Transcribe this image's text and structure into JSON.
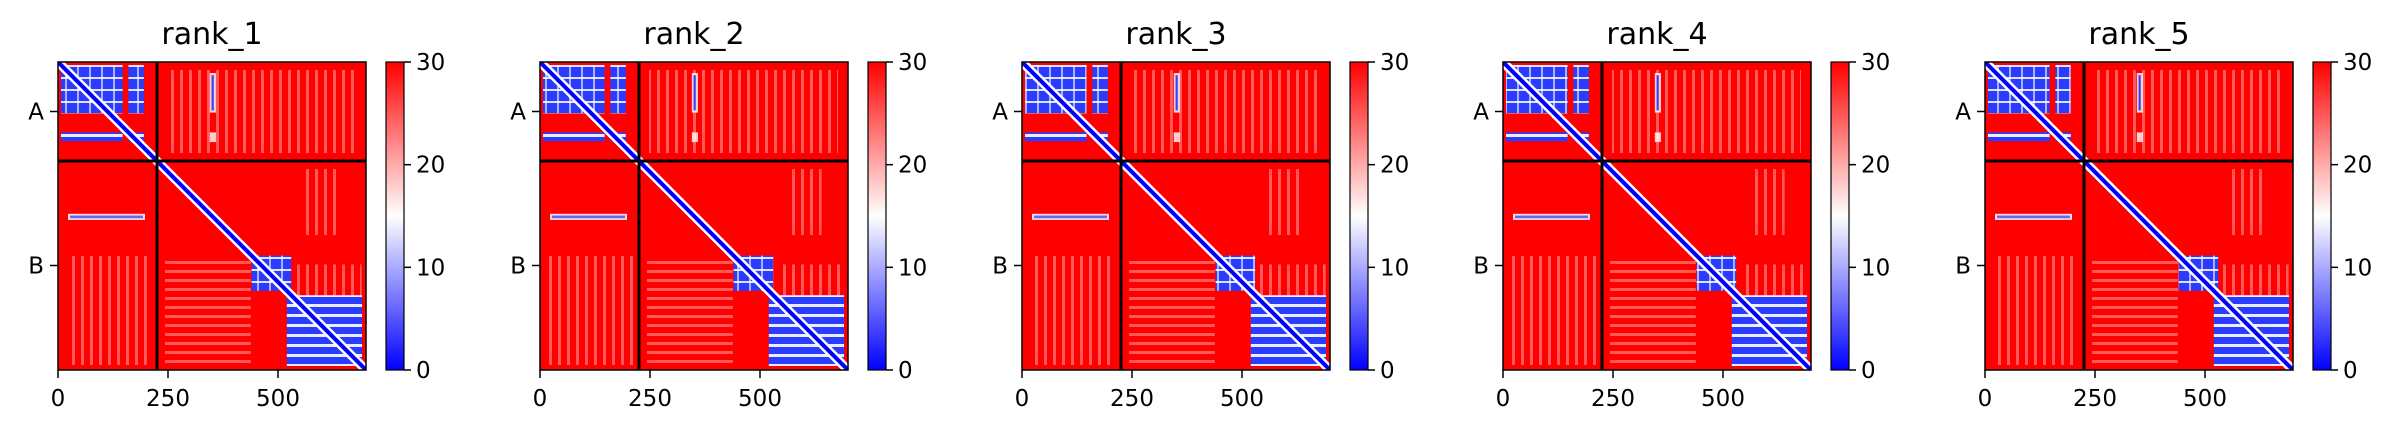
{
  "chart_data": [
    {
      "type": "heatmap",
      "title": "rank_1",
      "x_ticks": [
        "0",
        "250",
        "500"
      ],
      "y_ticks": [
        "A",
        "B"
      ],
      "x_range": [
        0,
        700
      ],
      "boundary": 225,
      "colorbar_ticks": [
        "0",
        "10",
        "20",
        "30"
      ],
      "colorbar_range": [
        0,
        30
      ],
      "colormap": [
        "#0000ff",
        "#ffffff",
        "#ff0000"
      ]
    },
    {
      "type": "heatmap",
      "title": "rank_2",
      "x_ticks": [
        "0",
        "250",
        "500"
      ],
      "y_ticks": [
        "A",
        "B"
      ],
      "x_range": [
        0,
        700
      ],
      "boundary": 225,
      "colorbar_ticks": [
        "0",
        "10",
        "20",
        "30"
      ],
      "colorbar_range": [
        0,
        30
      ],
      "colormap": [
        "#0000ff",
        "#ffffff",
        "#ff0000"
      ]
    },
    {
      "type": "heatmap",
      "title": "rank_3",
      "x_ticks": [
        "0",
        "250",
        "500"
      ],
      "y_ticks": [
        "A",
        "B"
      ],
      "x_range": [
        0,
        700
      ],
      "boundary": 225,
      "colorbar_ticks": [
        "0",
        "10",
        "20",
        "30"
      ],
      "colorbar_range": [
        0,
        30
      ],
      "colormap": [
        "#0000ff",
        "#ffffff",
        "#ff0000"
      ]
    },
    {
      "type": "heatmap",
      "title": "rank_4",
      "x_ticks": [
        "0",
        "250",
        "500"
      ],
      "y_ticks": [
        "A",
        "B"
      ],
      "x_range": [
        0,
        700
      ],
      "boundary": 225,
      "colorbar_ticks": [
        "0",
        "10",
        "20",
        "30"
      ],
      "colorbar_range": [
        0,
        30
      ],
      "colormap": [
        "#0000ff",
        "#ffffff",
        "#ff0000"
      ]
    },
    {
      "type": "heatmap",
      "title": "rank_5",
      "x_ticks": [
        "0",
        "250",
        "500"
      ],
      "y_ticks": [
        "A",
        "B"
      ],
      "x_range": [
        0,
        700
      ],
      "boundary": 225,
      "colorbar_ticks": [
        "0",
        "10",
        "20",
        "30"
      ],
      "colorbar_range": [
        0,
        30
      ],
      "colormap": [
        "#0000ff",
        "#ffffff",
        "#ff0000"
      ]
    }
  ]
}
